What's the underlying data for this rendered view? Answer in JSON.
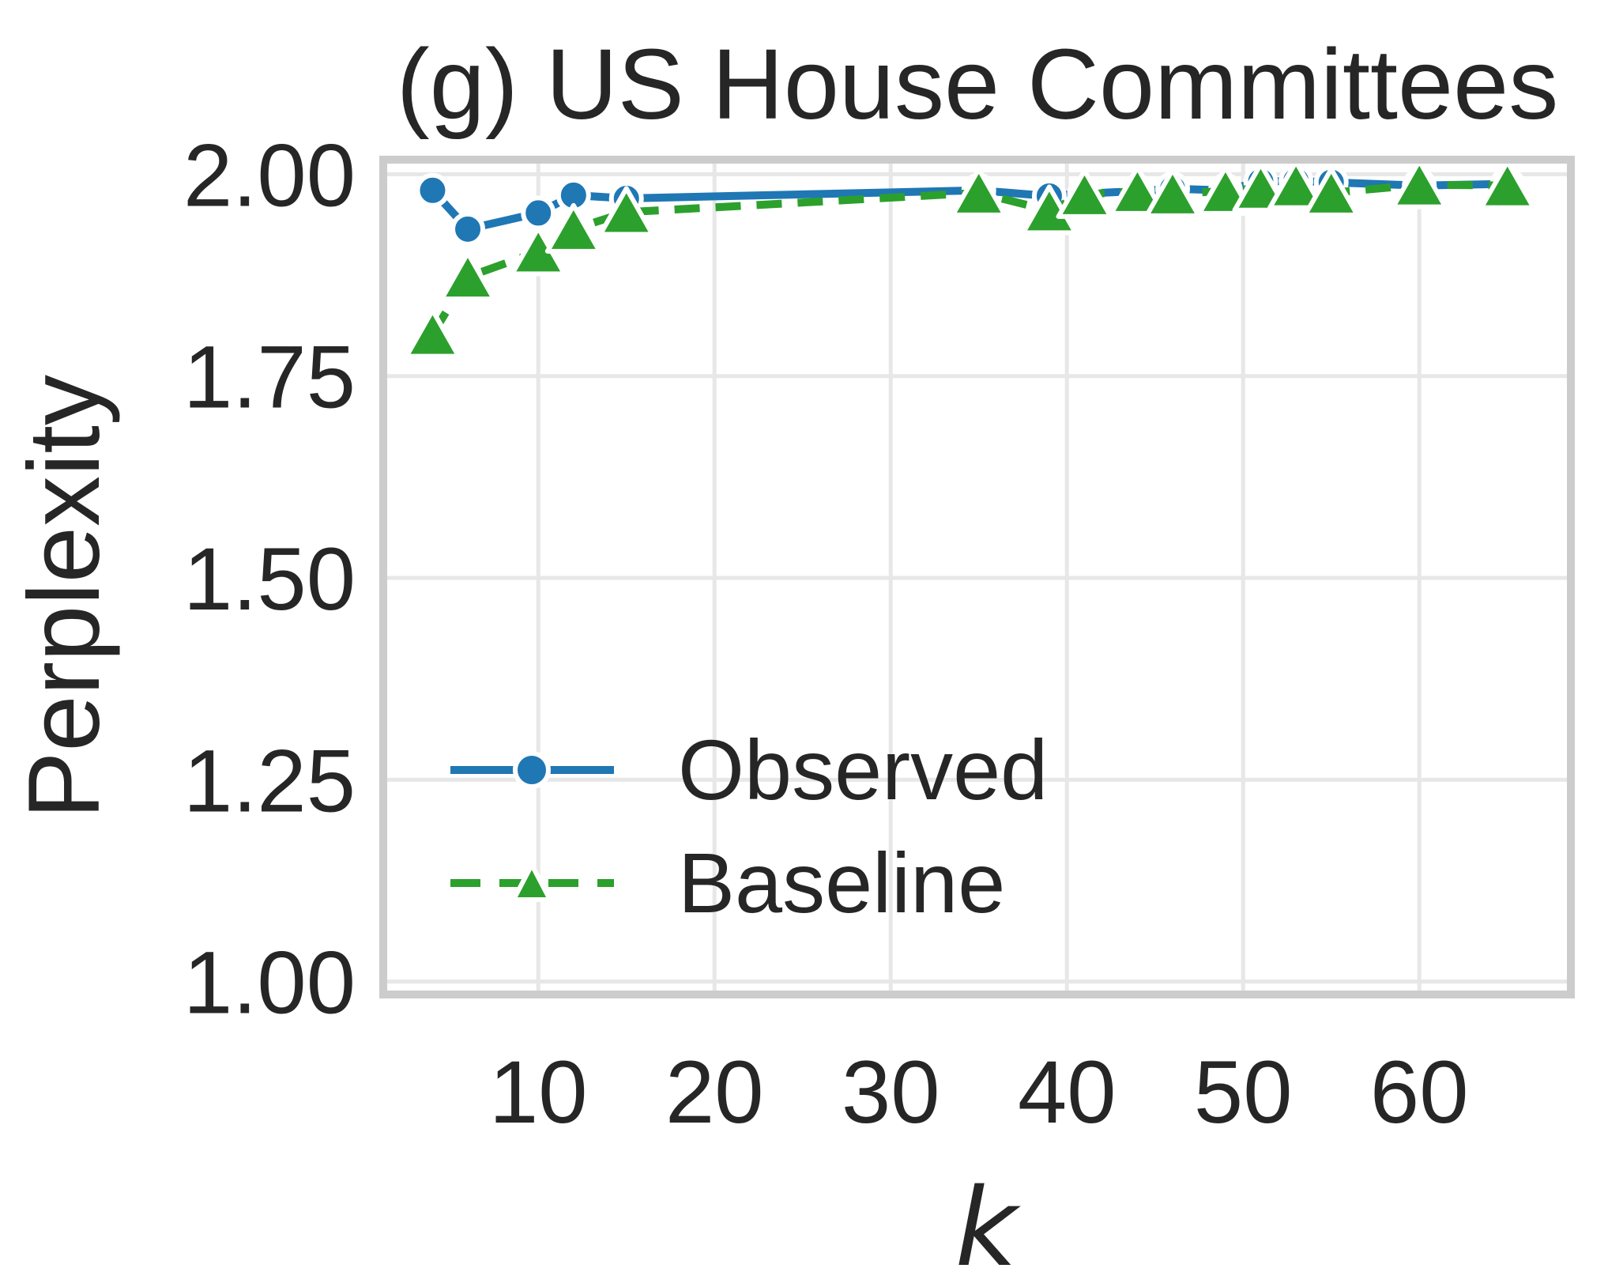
{
  "figure": {
    "title": "(g) US House Committees",
    "xlabel": "k",
    "ylabel": "Perplexity"
  },
  "legend": {
    "items": [
      {
        "label": "Observed",
        "marker": "circle-icon",
        "linestyle": "solid"
      },
      {
        "label": "Baseline",
        "marker": "triangle-icon",
        "linestyle": "dashed"
      }
    ],
    "position": "lower-left"
  },
  "colors": {
    "observed": "#1f77b4",
    "baseline": "#2ca02c",
    "grid": "#e7e7e7",
    "spine": "#cccccc",
    "text": "#262626",
    "marker_edge": "#ffffff",
    "background": "#ffffff"
  },
  "chart_data": {
    "type": "line",
    "title": "(g) US House Committees",
    "xlabel": "k",
    "ylabel": "Perplexity",
    "x": [
      4,
      6,
      10,
      12,
      15,
      35,
      39,
      41,
      44,
      46,
      49,
      51,
      53,
      55,
      60,
      65
    ],
    "series": [
      {
        "name": "Observed",
        "color": "#1f77b4",
        "marker": "circle",
        "linestyle": "solid",
        "values": [
          1.98,
          1.932,
          1.952,
          1.974,
          1.97,
          1.98,
          1.973,
          1.976,
          1.979,
          1.982,
          1.98,
          1.991,
          1.992,
          1.99,
          1.986,
          1.988
        ]
      },
      {
        "name": "Baseline",
        "color": "#2ca02c",
        "marker": "triangle",
        "linestyle": "dashed",
        "values": [
          1.802,
          1.873,
          1.904,
          1.932,
          1.953,
          1.977,
          1.955,
          1.975,
          1.979,
          1.976,
          1.979,
          1.983,
          1.986,
          1.977,
          1.987,
          1.986
        ]
      }
    ],
    "x_ticks": [
      {
        "value": 10,
        "label": "10"
      },
      {
        "value": 20,
        "label": "20"
      },
      {
        "value": 30,
        "label": "30"
      },
      {
        "value": 40,
        "label": "40"
      },
      {
        "value": 50,
        "label": "50"
      },
      {
        "value": 60,
        "label": "60"
      }
    ],
    "y_ticks": [
      {
        "value": 2.0,
        "label": "2.00"
      },
      {
        "value": 1.75,
        "label": "1.75"
      },
      {
        "value": 1.5,
        "label": "1.50"
      },
      {
        "value": 1.25,
        "label": "1.25"
      },
      {
        "value": 1.0,
        "label": "1.00"
      }
    ],
    "xlim": [
      1.2,
      68.6
    ],
    "ylim": [
      0.984,
      2.018
    ],
    "grid": true,
    "legend_position": "lower left"
  }
}
